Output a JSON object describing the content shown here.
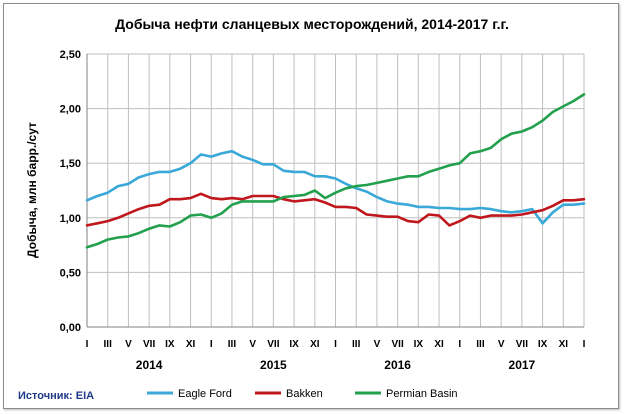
{
  "source": "Источник: EIA",
  "colors": {
    "eagle_ford": "#3aa8d8",
    "bakken": "#c0171d",
    "permian": "#23a04d",
    "grid": "#bfbfbf",
    "source_text": "#1f3a8a"
  },
  "chart_data": {
    "type": "line",
    "title": "Добыча нефти сланцевых месторождений, 2014-2017 г.г.",
    "ylabel": "Добыча, млн барр./сут",
    "xlabel": "",
    "ylim": [
      0,
      2.5
    ],
    "yticks": [
      "0,00",
      "0,50",
      "1,00",
      "1,50",
      "2,00",
      "2,50"
    ],
    "ytick_values": [
      0,
      0.5,
      1.0,
      1.5,
      2.0,
      2.5
    ],
    "grid": true,
    "legend": "bottom",
    "x_tick_labels": [
      "I",
      "III",
      "V",
      "VII",
      "IX",
      "XI",
      "I",
      "III",
      "V",
      "VII",
      "IX",
      "XI",
      "I",
      "III",
      "V",
      "VII",
      "IX",
      "XI",
      "I",
      "III",
      "V",
      "VII",
      "IX",
      "XI",
      "I"
    ],
    "years": [
      "2014",
      "2015",
      "2016",
      "2017"
    ],
    "x_count": 49,
    "series": [
      {
        "name": "Eagle Ford",
        "values": [
          1.16,
          1.2,
          1.23,
          1.29,
          1.31,
          1.37,
          1.4,
          1.42,
          1.42,
          1.45,
          1.5,
          1.58,
          1.56,
          1.59,
          1.61,
          1.56,
          1.53,
          1.49,
          1.49,
          1.43,
          1.42,
          1.42,
          1.38,
          1.38,
          1.36,
          1.31,
          1.27,
          1.24,
          1.19,
          1.15,
          1.13,
          1.12,
          1.1,
          1.1,
          1.09,
          1.09,
          1.08,
          1.08,
          1.09,
          1.08,
          1.06,
          1.05,
          1.06,
          1.08,
          0.95,
          1.05,
          1.12,
          1.12,
          1.13
        ]
      },
      {
        "name": "Bakken",
        "values": [
          0.93,
          0.95,
          0.97,
          1.0,
          1.04,
          1.08,
          1.11,
          1.12,
          1.17,
          1.17,
          1.18,
          1.22,
          1.18,
          1.17,
          1.18,
          1.17,
          1.2,
          1.2,
          1.2,
          1.17,
          1.15,
          1.16,
          1.17,
          1.14,
          1.1,
          1.1,
          1.09,
          1.03,
          1.02,
          1.01,
          1.01,
          0.97,
          0.96,
          1.03,
          1.02,
          0.93,
          0.97,
          1.02,
          1.0,
          1.02,
          1.02,
          1.02,
          1.03,
          1.05,
          1.07,
          1.11,
          1.16,
          1.16,
          1.17
        ]
      },
      {
        "name": "Permian Basin",
        "values": [
          0.73,
          0.76,
          0.8,
          0.82,
          0.83,
          0.86,
          0.9,
          0.93,
          0.92,
          0.96,
          1.02,
          1.03,
          1.0,
          1.04,
          1.12,
          1.15,
          1.15,
          1.15,
          1.15,
          1.19,
          1.2,
          1.21,
          1.25,
          1.18,
          1.23,
          1.27,
          1.29,
          1.3,
          1.32,
          1.34,
          1.36,
          1.38,
          1.38,
          1.42,
          1.45,
          1.48,
          1.5,
          1.59,
          1.61,
          1.64,
          1.72,
          1.77,
          1.79,
          1.83,
          1.89,
          1.97,
          2.02,
          2.07,
          2.13
        ]
      }
    ]
  }
}
